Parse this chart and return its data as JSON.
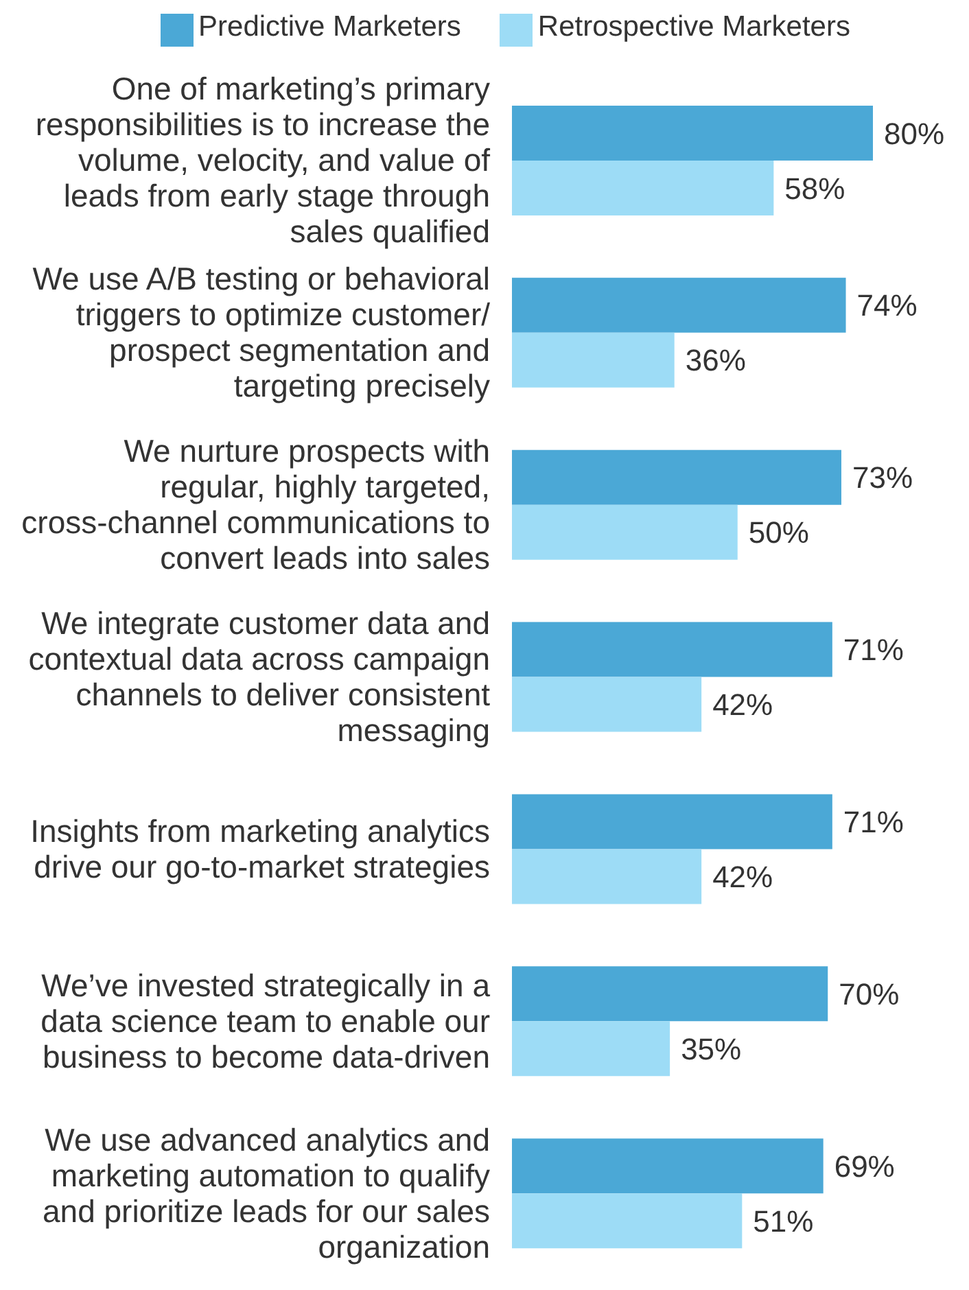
{
  "chart_data": {
    "type": "bar",
    "orientation": "horizontal",
    "data_labels": true,
    "legend": "top",
    "grid": false,
    "tick_labels": "y",
    "categories": [
      "One of marketing’s primary responsibilities is to increase the volume, velocity, and value of leads from early stage through sales qualified",
      "We use A/B testing or behavioral triggers to optimize customer/ prospect segmentation and targeting precisely",
      "We nurture prospects with regular, highly targeted, cross-channel communications to convert leads into sales",
      "We integrate customer data and contextual data across campaign channels to deliver consistent messaging",
      "Insights from marketing analytics drive our go-to-market strategies",
      "We’ve invested strategically in a data science team to enable our business to become data-driven",
      "We use advanced analytics and marketing automation to qualify and prioritize leads for our sales organization"
    ],
    "series": [
      {
        "name": "Predictive Marketers",
        "color": "#4ba8d6",
        "values": [
          80,
          74,
          73,
          71,
          71,
          70,
          69
        ],
        "value_labels": [
          "80%",
          "74%",
          "73%",
          "71%",
          "71%",
          "70%",
          "69%"
        ]
      },
      {
        "name": "Retrospective Marketers",
        "color": "#9ddcf6",
        "values": [
          58,
          36,
          50,
          42,
          42,
          35,
          51
        ],
        "value_labels": [
          "58%",
          "36%",
          "50%",
          "42%",
          "42%",
          "35%",
          "51%"
        ]
      }
    ]
  }
}
